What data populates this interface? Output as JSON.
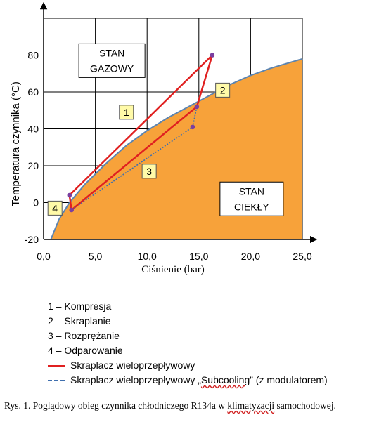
{
  "chart_data": {
    "type": "line",
    "xlabel": "Ciśnienie (bar)",
    "ylabel": "Temperatura czynnika (°C)",
    "xlim": [
      0,
      25
    ],
    "ylim": [
      -20,
      100
    ],
    "x_ticks": [
      "0,0",
      "5,0",
      "10,0",
      "15,0",
      "20,0",
      "25,0"
    ],
    "y_ticks": [
      "-20",
      "0",
      "20",
      "40",
      "60",
      "80"
    ],
    "grid": true,
    "saturation_curve": {
      "x": [
        0.7,
        1.5,
        2.5,
        4,
        6,
        8,
        10,
        12,
        14,
        16,
        18,
        20,
        22,
        25
      ],
      "y": [
        -20,
        -9,
        0,
        10,
        21,
        31,
        39,
        46,
        52,
        58,
        64,
        69,
        73,
        78
      ],
      "fill_color": "#f7a23a",
      "line_color": "#5b84b1"
    },
    "region_labels": [
      {
        "id": "gas",
        "lines": [
          "STAN",
          "GAZOWY"
        ],
        "x": 6.6,
        "y": 77
      },
      {
        "id": "liquid",
        "lines": [
          "STAN",
          "CIEKŁY"
        ],
        "x": 20.1,
        "y": 2
      }
    ],
    "point_labels": [
      {
        "label": "1",
        "x": 8.0,
        "y": 49
      },
      {
        "label": "2",
        "x": 17.3,
        "y": 61
      },
      {
        "label": "3",
        "x": 10.2,
        "y": 17
      },
      {
        "label": "4",
        "x": 1.1,
        "y": -3
      }
    ],
    "series": [
      {
        "name": "Skraplacz wieloprzepływowy",
        "color": "#e02020",
        "style": "solid",
        "x": [
          2.5,
          16.3,
          14.8,
          2.7,
          2.5
        ],
        "y": [
          4,
          80,
          52,
          -4,
          4
        ]
      },
      {
        "name": "Skraplacz wieloprzepływowy „Subcooling” (z modulatorem)",
        "color": "#3f6fae",
        "style": "dotted",
        "x": [
          14.8,
          14.4,
          2.7
        ],
        "y": [
          52,
          41,
          -4
        ]
      }
    ],
    "markers": {
      "color": "#7a3fa0",
      "x": [
        2.5,
        16.3,
        14.8,
        14.4,
        2.7
      ],
      "y": [
        4,
        80,
        52,
        41,
        -4
      ]
    }
  },
  "legend": {
    "items": [
      {
        "text": "1 – Kompresja"
      },
      {
        "text": "2 – Skraplanie"
      },
      {
        "text": "3 – Rozprężanie"
      },
      {
        "text": "4 – Odparowanie"
      }
    ],
    "red_line_label": "Skraplacz wieloprzepływowy",
    "blue_line_prefix": "Skraplacz wieloprzepływowy „",
    "blue_line_word": "Subcooling",
    "blue_line_suffix": "” (z modulatorem)"
  },
  "caption": {
    "prefix": "Rys. 1. Poglądowy obieg czynnika chłodniczego R134a w ",
    "underlined": "klimatyzacji",
    "suffix": " samochodowej."
  }
}
